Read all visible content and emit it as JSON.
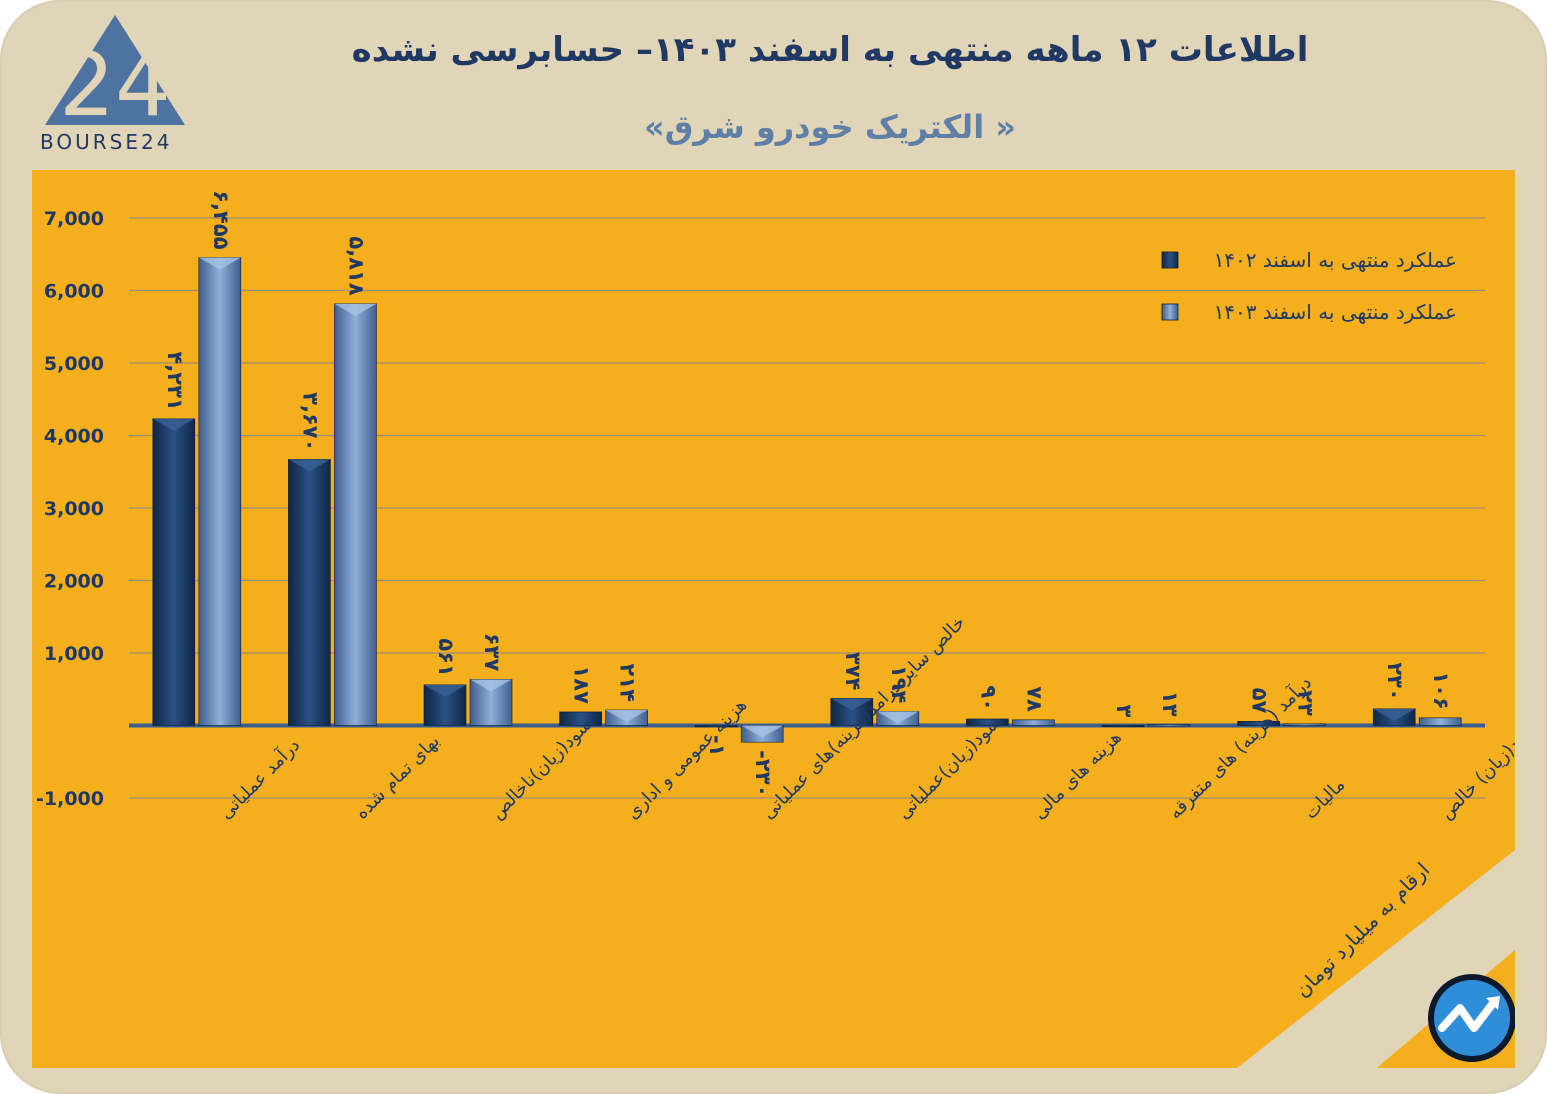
{
  "header": {
    "title": "اطلاعات ۱۲ ماهه منتهی به اسفند ۱۴۰۳– حسابرسی نشده",
    "subtitle": "« الکتریک خودرو شرق»",
    "logo_text": "BOURSE24",
    "logo_mark": "24"
  },
  "footer": {
    "note": "ارقام به میلیارد تومان"
  },
  "colors": {
    "background": "#e1d5b8",
    "panel": "#f5ae1c",
    "series_1402": "#1b3a63",
    "series_1403": "#5b7fb0",
    "title": "#1f3864"
  },
  "chart_data": {
    "type": "bar",
    "title": "اطلاعات ۱۲ ماهه منتهی به اسفند ۱۴۰۳– حسابرسی نشده",
    "xlabel": "",
    "ylabel": "",
    "ylim": [
      -1000,
      7000
    ],
    "yticks": [
      -1000,
      1000,
      2000,
      3000,
      4000,
      5000,
      6000,
      7000
    ],
    "ytick_labels": [
      "-1,000",
      "1,000",
      "2,000",
      "3,000",
      "4,000",
      "5,000",
      "6,000",
      "7,000"
    ],
    "grid": true,
    "legend_position": "top-right",
    "categories": [
      "درآمد عملیاتی",
      "بهای تمام شده",
      "سود(زیان)ناخالص",
      "هزینه عمومی و اداری",
      "خالص سایر درامد(هزینه)های عملیاتی",
      "سود(زیان)عملیاتی",
      "هزینه های مالی",
      "درآمد (هزینه) های متفرقه",
      "مالیات",
      "سود(زیان) خالص"
    ],
    "series": [
      {
        "name": "عملکرد منتهی به اسفند ۱۴۰۲",
        "values": [
          4231,
          3670,
          561,
          187,
          -1,
          374,
          90,
          3,
          57,
          230
        ],
        "labels": [
          "۴,۲۳۱",
          "۳,۶۷۰",
          "۵۶۱",
          "۱۸۷",
          "-۱",
          "۳۷۴",
          "۹۰",
          "۳",
          "۵۷",
          "۲۳۰"
        ]
      },
      {
        "name": "عملکرد منتهی به اسفند ۱۴۰۳",
        "values": [
          6455,
          5818,
          637,
          214,
          -230,
          194,
          78,
          13,
          23,
          106
        ],
        "labels": [
          "۶,۴۵۵",
          "۵,۸۱۸",
          "۶۳۷",
          "۲۱۴",
          "-۲۳۰",
          "۱۹۴",
          "۷۸",
          "۱۳",
          "۲۳",
          "۱۰۶"
        ]
      }
    ]
  }
}
